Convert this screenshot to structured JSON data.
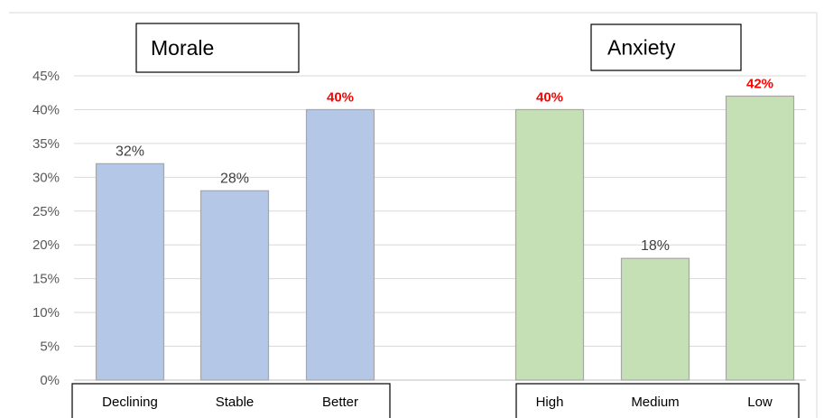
{
  "chart_data": {
    "type": "bar",
    "ylim": [
      0,
      45
    ],
    "ytick_step": 5,
    "ytick_labels": [
      "0%",
      "5%",
      "10%",
      "15%",
      "20%",
      "25%",
      "30%",
      "35%",
      "40%",
      "45%"
    ],
    "grid": true,
    "groups": [
      {
        "title": "Morale",
        "color": "#b4c7e7",
        "categories": [
          "Declining",
          "Stable",
          "Better"
        ],
        "values": [
          32,
          28,
          40
        ],
        "data_labels": [
          "32%",
          "28%",
          "40%"
        ],
        "highlight": [
          false,
          false,
          true
        ]
      },
      {
        "title": "Anxiety",
        "color": "#c5e0b4",
        "categories": [
          "High",
          "Medium",
          "Low"
        ],
        "values": [
          40,
          18,
          42
        ],
        "data_labels": [
          "40%",
          "18%",
          "42%"
        ],
        "highlight": [
          true,
          false,
          true
        ]
      }
    ],
    "highlight_color": "#ff0000",
    "label_color": "#404040"
  }
}
